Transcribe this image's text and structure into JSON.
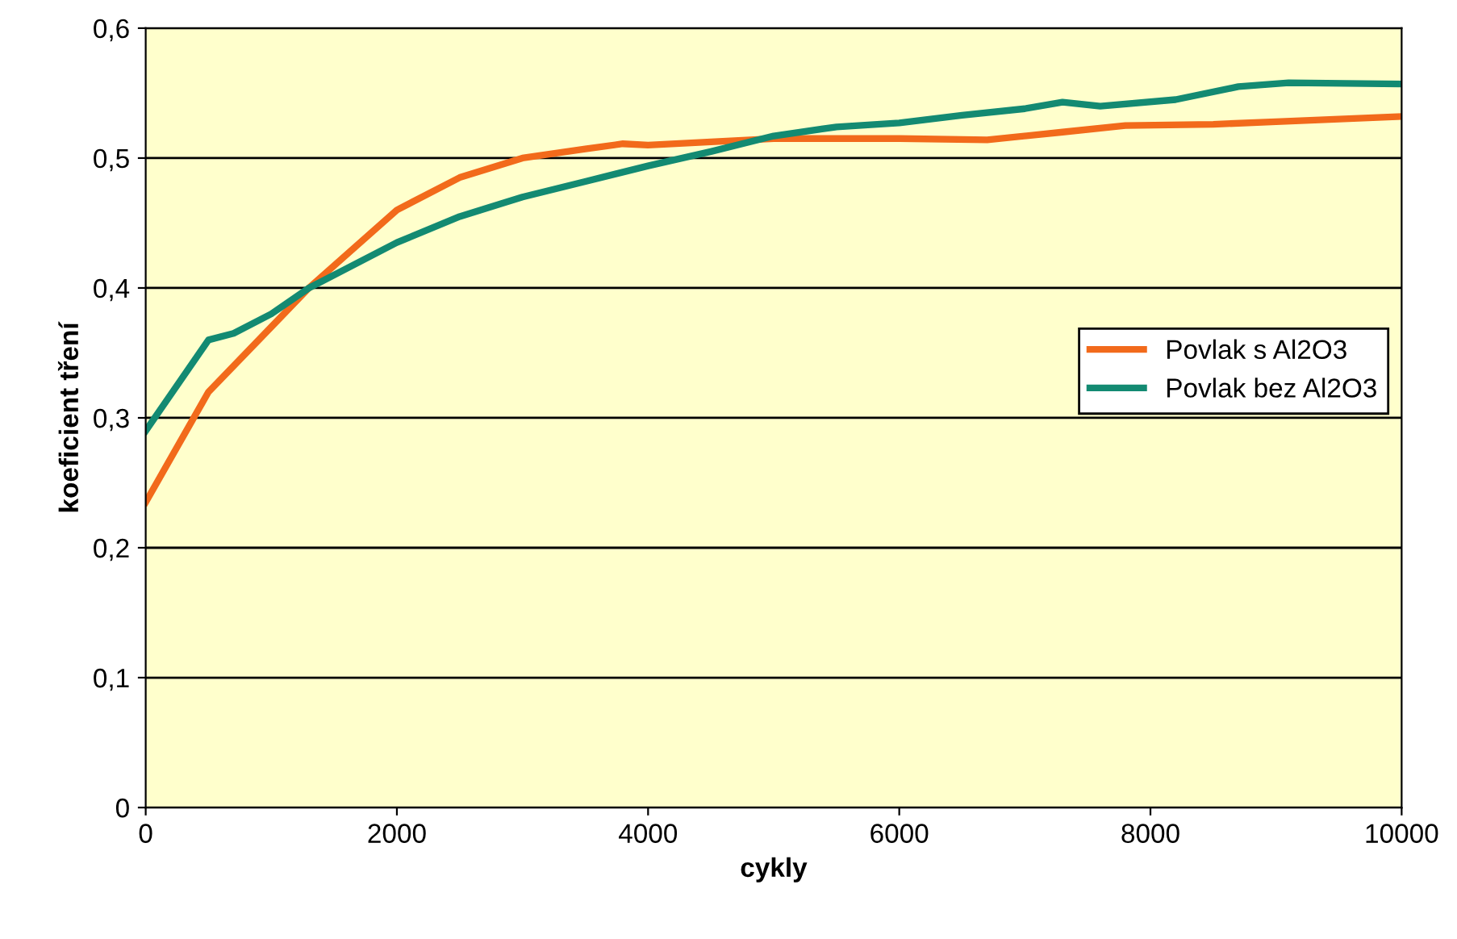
{
  "chart_data": {
    "type": "line",
    "xlabel": "cykly",
    "ylabel": "koeficient tření",
    "xlim": [
      0,
      10000
    ],
    "ylim": [
      0,
      0.6
    ],
    "xticks": [
      0,
      2000,
      4000,
      6000,
      8000,
      10000
    ],
    "yticks": [
      {
        "value": 0,
        "label": "0"
      },
      {
        "value": 0.1,
        "label": "0,1"
      },
      {
        "value": 0.2,
        "label": "0,2"
      },
      {
        "value": 0.3,
        "label": "0,3"
      },
      {
        "value": 0.4,
        "label": "0,4"
      },
      {
        "value": 0.5,
        "label": "0,5"
      },
      {
        "value": 0.6,
        "label": "0,6"
      }
    ],
    "grid": "y",
    "legend": "right",
    "marker": "none",
    "series": [
      {
        "name": "Povlak s Al2O3",
        "color": "#f26a1b",
        "x": [
          0,
          500,
          1000,
          1300,
          2000,
          2500,
          3000,
          3500,
          3800,
          4000,
          5000,
          6000,
          6700,
          7300,
          7800,
          8500,
          9000,
          10000
        ],
        "values": [
          0.235,
          0.32,
          0.37,
          0.4,
          0.46,
          0.485,
          0.5,
          0.507,
          0.511,
          0.51,
          0.515,
          0.515,
          0.514,
          0.52,
          0.525,
          0.526,
          0.528,
          0.532
        ]
      },
      {
        "name": "Povlak bez Al2O3",
        "color": "#138a72",
        "x": [
          0,
          500,
          700,
          1000,
          1300,
          2000,
          2500,
          3000,
          3500,
          4000,
          4500,
          5000,
          5500,
          6000,
          6500,
          7000,
          7300,
          7600,
          8200,
          8700,
          9100,
          10000
        ],
        "values": [
          0.29,
          0.36,
          0.365,
          0.38,
          0.4,
          0.435,
          0.455,
          0.47,
          0.482,
          0.494,
          0.505,
          0.517,
          0.524,
          0.527,
          0.533,
          0.538,
          0.543,
          0.54,
          0.545,
          0.555,
          0.558,
          0.557
        ]
      }
    ]
  }
}
